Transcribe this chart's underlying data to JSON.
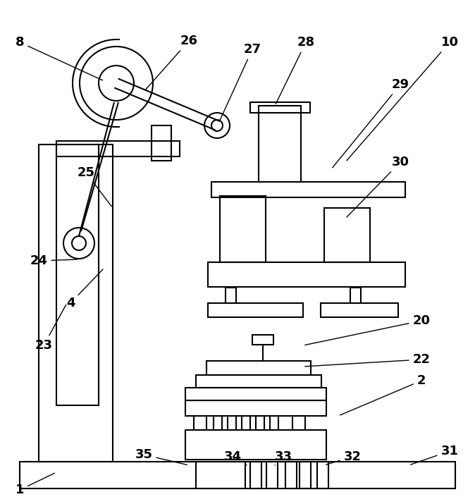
{
  "bg": "#ffffff",
  "lc": "#000000",
  "lw": 1.5,
  "fig_w": 6.74,
  "fig_h": 7.15,
  "dpi": 100,
  "annotations": [
    [
      "1",
      28,
      695,
      80,
      670
    ],
    [
      "2",
      598,
      540,
      480,
      590
    ],
    [
      "4",
      100,
      430,
      148,
      380
    ],
    [
      "8",
      28,
      60,
      148,
      115
    ],
    [
      "10",
      638,
      60,
      490,
      230
    ],
    [
      "20",
      598,
      455,
      430,
      490
    ],
    [
      "22",
      598,
      510,
      430,
      520
    ],
    [
      "23",
      62,
      490,
      95,
      430
    ],
    [
      "24",
      55,
      370,
      112,
      368
    ],
    [
      "25",
      122,
      245,
      160,
      295
    ],
    [
      "26",
      268,
      58,
      204,
      130
    ],
    [
      "27",
      358,
      70,
      310,
      175
    ],
    [
      "28",
      434,
      60,
      390,
      150
    ],
    [
      "29",
      568,
      120,
      470,
      240
    ],
    [
      "30",
      568,
      230,
      490,
      310
    ],
    [
      "31",
      638,
      640,
      580,
      660
    ],
    [
      "32",
      500,
      648,
      460,
      660
    ],
    [
      "33",
      402,
      648,
      390,
      660
    ],
    [
      "34",
      330,
      648,
      350,
      660
    ],
    [
      "35",
      204,
      645,
      268,
      660
    ]
  ]
}
